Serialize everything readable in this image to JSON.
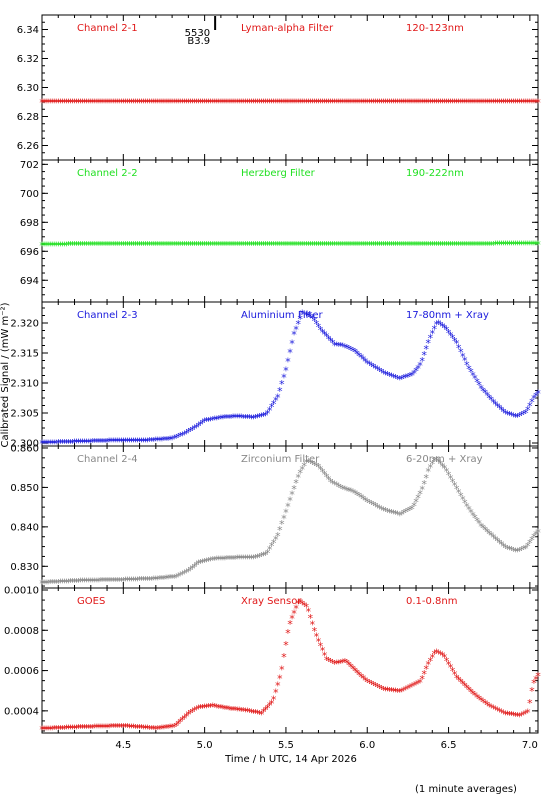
{
  "chart_data": {
    "type": "scatter",
    "xlabel": "Time / h UTC, 14 Apr 2026",
    "ylabel": "Calibrated Signal / (mW m⁻²)",
    "footnote": "(1 minute averages)",
    "xlim": [
      4.0,
      7.05
    ],
    "xticks": [
      4.5,
      5.0,
      5.5,
      6.0,
      6.5,
      7.0
    ],
    "marker": "*",
    "annotation": {
      "x": 5.04,
      "lines": [
        "5530",
        "B3.9"
      ]
    },
    "panels": [
      {
        "name": "Channel 2-1",
        "filter": "Lyman-alpha Filter",
        "band": "120-123nm",
        "color": "#e01818",
        "ylim": [
          6.25,
          6.35
        ],
        "yticks": [
          6.26,
          6.28,
          6.3,
          6.32,
          6.34
        ],
        "tick_decimals": 2,
        "series": [
          [
            4.0,
            6.2892
          ],
          [
            7.05,
            6.2892
          ]
        ]
      },
      {
        "name": "Channel 2-2",
        "filter": "Herzberg Filter",
        "band": "190-222nm",
        "color": "#22e022",
        "ylim": [
          692.5,
          702.3
        ],
        "yticks": [
          694,
          696,
          698,
          700,
          702
        ],
        "tick_decimals": 0,
        "series": [
          [
            4.0,
            696.38
          ],
          [
            7.05,
            696.42
          ]
        ]
      },
      {
        "name": "Channel 2-3",
        "filter": "Aluminium Filter",
        "band": "17-80nm + Xray",
        "color": "#1a1adc",
        "ylim": [
          2.2995,
          2.3235
        ],
        "yticks": [
          2.3,
          2.305,
          2.31,
          2.315,
          2.32
        ],
        "tick_decimals": 3,
        "series": [
          [
            4.0,
            2.2998
          ],
          [
            4.25,
            2.3
          ],
          [
            4.5,
            2.3002
          ],
          [
            4.65,
            2.3002
          ],
          [
            4.8,
            2.3005
          ],
          [
            4.88,
            2.3014
          ],
          [
            4.95,
            2.3025
          ],
          [
            5.0,
            2.3035
          ],
          [
            5.1,
            2.304
          ],
          [
            5.2,
            2.3042
          ],
          [
            5.3,
            2.304
          ],
          [
            5.38,
            2.3045
          ],
          [
            5.45,
            2.3075
          ],
          [
            5.5,
            2.312
          ],
          [
            5.55,
            2.318
          ],
          [
            5.6,
            2.3215
          ],
          [
            5.66,
            2.3208
          ],
          [
            5.72,
            2.3185
          ],
          [
            5.8,
            2.3162
          ],
          [
            5.85,
            2.316
          ],
          [
            5.92,
            2.3152
          ],
          [
            6.0,
            2.3132
          ],
          [
            6.1,
            2.3115
          ],
          [
            6.2,
            2.3105
          ],
          [
            6.28,
            2.3112
          ],
          [
            6.33,
            2.313
          ],
          [
            6.38,
            2.317
          ],
          [
            6.43,
            2.32
          ],
          [
            6.48,
            2.319
          ],
          [
            6.55,
            2.3165
          ],
          [
            6.62,
            2.3125
          ],
          [
            6.7,
            2.309
          ],
          [
            6.78,
            2.3065
          ],
          [
            6.85,
            2.3048
          ],
          [
            6.92,
            2.3042
          ],
          [
            6.98,
            2.305
          ],
          [
            7.02,
            2.3072
          ],
          [
            7.05,
            2.3082
          ]
        ]
      },
      {
        "name": "Channel 2-4",
        "filter": "Zirconium Filter",
        "band": "6-20nm + Xray",
        "color": "#888888",
        "ylim": [
          0.8245,
          0.8605
        ],
        "yticks": [
          0.83,
          0.84,
          0.85,
          0.86
        ],
        "tick_decimals": 3,
        "series": [
          [
            4.0,
            0.8255
          ],
          [
            4.25,
            0.826
          ],
          [
            4.5,
            0.8262
          ],
          [
            4.7,
            0.8265
          ],
          [
            4.82,
            0.827
          ],
          [
            4.9,
            0.8285
          ],
          [
            4.96,
            0.8305
          ],
          [
            5.05,
            0.8315
          ],
          [
            5.2,
            0.8318
          ],
          [
            5.3,
            0.8318
          ],
          [
            5.38,
            0.8328
          ],
          [
            5.45,
            0.8375
          ],
          [
            5.52,
            0.846
          ],
          [
            5.58,
            0.853
          ],
          [
            5.63,
            0.8565
          ],
          [
            5.7,
            0.855
          ],
          [
            5.78,
            0.851
          ],
          [
            5.85,
            0.8495
          ],
          [
            5.92,
            0.8485
          ],
          [
            6.0,
            0.8462
          ],
          [
            6.1,
            0.844
          ],
          [
            6.2,
            0.8428
          ],
          [
            6.28,
            0.8445
          ],
          [
            6.34,
            0.8495
          ],
          [
            6.38,
            0.8545
          ],
          [
            6.42,
            0.857
          ],
          [
            6.48,
            0.8545
          ],
          [
            6.55,
            0.8495
          ],
          [
            6.62,
            0.8445
          ],
          [
            6.7,
            0.84
          ],
          [
            6.78,
            0.837
          ],
          [
            6.85,
            0.8345
          ],
          [
            6.92,
            0.8335
          ],
          [
            6.98,
            0.8345
          ],
          [
            7.02,
            0.837
          ],
          [
            7.05,
            0.8385
          ]
        ]
      },
      {
        "name": "GOES",
        "filter": "Xray Sensor",
        "band": "0.1-0.8nm",
        "color": "#e01818",
        "ylim": [
          0.00029,
          0.00101
        ],
        "yticks": [
          0.0004,
          0.0006,
          0.0008,
          0.001
        ],
        "tick_decimals": 4,
        "series": [
          [
            4.0,
            0.000304
          ],
          [
            4.25,
            0.000312
          ],
          [
            4.5,
            0.000318
          ],
          [
            4.7,
            0.000306
          ],
          [
            4.82,
            0.000318
          ],
          [
            4.9,
            0.00038
          ],
          [
            4.96,
            0.00041
          ],
          [
            5.05,
            0.000418
          ],
          [
            5.15,
            0.000404
          ],
          [
            5.25,
            0.000395
          ],
          [
            5.35,
            0.00038
          ],
          [
            5.42,
            0.00044
          ],
          [
            5.47,
            0.00058
          ],
          [
            5.52,
            0.00082
          ],
          [
            5.58,
            0.00094
          ],
          [
            5.63,
            0.00091
          ],
          [
            5.68,
            0.00078
          ],
          [
            5.75,
            0.00065
          ],
          [
            5.8,
            0.00063
          ],
          [
            5.87,
            0.00064
          ],
          [
            5.93,
            0.00059
          ],
          [
            6.0,
            0.00054
          ],
          [
            6.1,
            0.0005
          ],
          [
            6.2,
            0.00049
          ],
          [
            6.28,
            0.00052
          ],
          [
            6.33,
            0.00054
          ],
          [
            6.37,
            0.00062
          ],
          [
            6.42,
            0.00069
          ],
          [
            6.47,
            0.00067
          ],
          [
            6.55,
            0.00056
          ],
          [
            6.65,
            0.00048
          ],
          [
            6.75,
            0.00042
          ],
          [
            6.85,
            0.00038
          ],
          [
            6.94,
            0.00037
          ],
          [
            6.99,
            0.00039
          ],
          [
            7.02,
            0.00053
          ],
          [
            7.05,
            0.00057
          ]
        ]
      }
    ]
  }
}
